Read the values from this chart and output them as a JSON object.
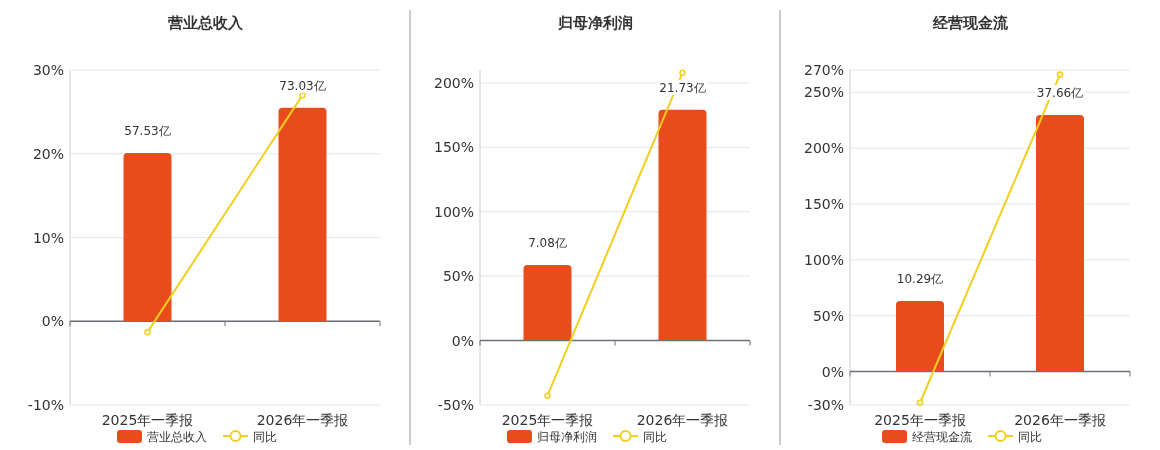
{
  "chart_data": [
    {
      "type": "bar",
      "title": "营业总收入",
      "categories": [
        "2025年一季报",
        "2026年一季报"
      ],
      "ylim": [
        -10,
        30
      ],
      "yticks": [
        {
          "value": -10,
          "label": "-10%"
        },
        {
          "value": 0,
          "label": "0%"
        },
        {
          "value": 10,
          "label": "10%"
        },
        {
          "value": 20,
          "label": "20%"
        },
        {
          "value": 30,
          "label": "30%"
        }
      ],
      "y2lim": [
        -28.77,
        85.95
      ],
      "grid": "y",
      "legend": "bottom",
      "marker": "circle",
      "series": [
        {
          "name": "营业总收入",
          "axis": "y2",
          "color": "#e84c1c",
          "values": [
            57.53,
            73.03
          ],
          "value_labels": [
            "57.53亿",
            "73.03亿"
          ]
        },
        {
          "name": "同比",
          "type": "line",
          "color": "#f2cf1d",
          "values": [
            -1.3,
            27.0
          ]
        }
      ]
    },
    {
      "type": "bar",
      "title": "归母净利润",
      "categories": [
        "2025年一季报",
        "2026年一季报"
      ],
      "ylim": [
        -50,
        210
      ],
      "yticks": [
        {
          "value": -50,
          "label": "-50%"
        },
        {
          "value": 0,
          "label": "0%"
        },
        {
          "value": 50,
          "label": "50%"
        },
        {
          "value": 100,
          "label": "100%"
        },
        {
          "value": 150,
          "label": "150%"
        },
        {
          "value": 200,
          "label": "200%"
        }
      ],
      "y2lim": [
        -6.14,
        25.49
      ],
      "grid": "y",
      "legend": "bottom",
      "marker": "circle",
      "series": [
        {
          "name": "归母净利润",
          "axis": "y2",
          "color": "#e84c1c",
          "values": [
            7.08,
            21.73
          ],
          "value_labels": [
            "7.08亿",
            "21.73亿"
          ]
        },
        {
          "name": "同比",
          "type": "line",
          "color": "#f2cf1d",
          "values": [
            -42.8,
            207.8
          ]
        }
      ]
    },
    {
      "type": "bar",
      "title": "经营现金流",
      "categories": [
        "2025年一季报",
        "2026年一季报"
      ],
      "ylim": [
        -30,
        270
      ],
      "yticks": [
        {
          "value": -30,
          "label": "-30%"
        },
        {
          "value": 0,
          "label": "0%"
        },
        {
          "value": 50,
          "label": "50%"
        },
        {
          "value": 100,
          "label": "100%"
        },
        {
          "value": 150,
          "label": "150%"
        },
        {
          "value": 200,
          "label": "200%"
        },
        {
          "value": 250,
          "label": "250%"
        },
        {
          "value": 270,
          "label": "270%"
        }
      ],
      "y2lim": [
        -5.0,
        44.27
      ],
      "grid": "y",
      "legend": "bottom",
      "marker": "circle",
      "series": [
        {
          "name": "经营现金流",
          "axis": "y2",
          "color": "#e84c1c",
          "values": [
            10.29,
            37.66
          ],
          "value_labels": [
            "10.29亿",
            "37.66亿"
          ]
        },
        {
          "name": "同比",
          "type": "line",
          "color": "#f2cf1d",
          "values": [
            -28,
            266
          ]
        }
      ]
    }
  ]
}
